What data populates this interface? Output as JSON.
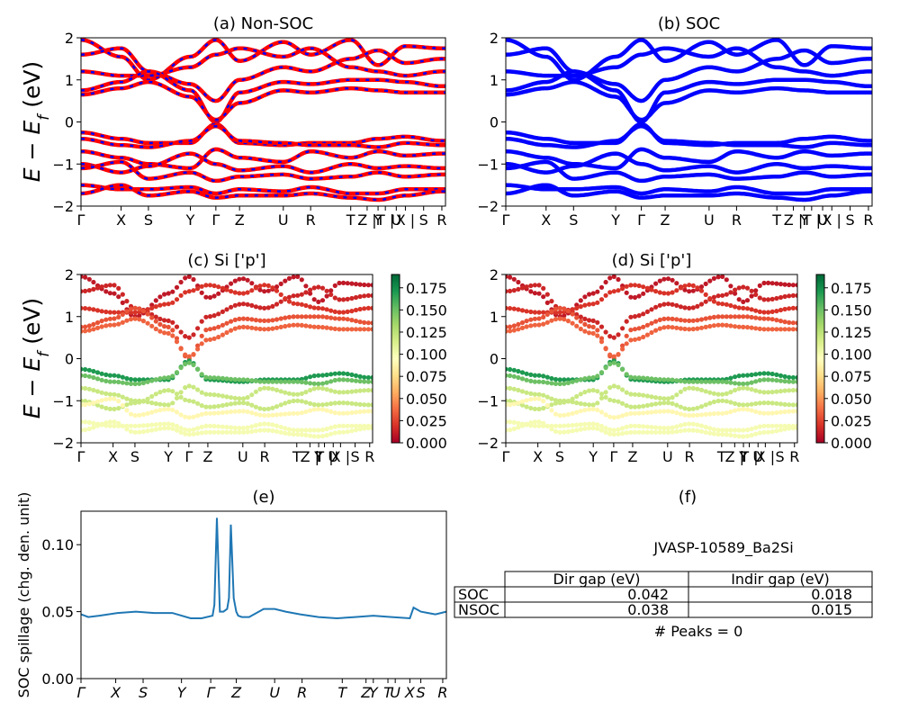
{
  "figure": {
    "ylabel_main": "E − E",
    "ylabel_sub": "f",
    "ylabel_unit": " (eV)"
  },
  "panels": {
    "a": {
      "title": "(a) Non-SOC",
      "yticks": [
        2,
        1,
        0,
        -1,
        -2
      ],
      "ytick_labels": [
        "2",
        "1",
        "0",
        "−1",
        "−2"
      ],
      "kpoint_labels": [
        "Γ",
        "X",
        "S",
        "Y",
        "Γ",
        "Z",
        "U",
        "R",
        "T",
        "Z |",
        "Y",
        "T |",
        "U",
        "X |",
        "S",
        "R"
      ]
    },
    "b": {
      "title": "(b) SOC",
      "yticks": [
        2,
        1,
        0,
        -1,
        -2
      ],
      "ytick_labels": [
        "2",
        "1",
        "0",
        "−1",
        "−2"
      ],
      "kpoint_labels": [
        "Γ",
        "X",
        "S",
        "Y",
        "Γ",
        "Z",
        "U",
        "R",
        "T",
        "Z |",
        "Y",
        "T |",
        "U",
        "X |",
        "S",
        "R"
      ]
    },
    "c": {
      "title": "(c)  Si ['p']",
      "ytick_labels": [
        "2",
        "1",
        "0",
        "−1",
        "−2"
      ],
      "kpoint_labels": [
        "Γ",
        "X",
        "S",
        "Y",
        "Γ",
        "Z",
        "U",
        "R",
        "T",
        "Z |",
        "Y",
        "T |",
        "U",
        "X |",
        "S",
        "R"
      ],
      "colorbar_ticks": [
        "0.175",
        "0.150",
        "0.125",
        "0.100",
        "0.075",
        "0.050",
        "0.025",
        "0.000"
      ]
    },
    "d": {
      "title": "(d) Si ['p']",
      "ytick_labels": [
        "2",
        "1",
        "0",
        "−1",
        "−2"
      ],
      "kpoint_labels": [
        "Γ",
        "X",
        "S",
        "Y",
        "Γ",
        "Z",
        "U",
        "R",
        "T",
        "Z |",
        "Y",
        "T |",
        "U",
        "X |",
        "S",
        "R"
      ],
      "colorbar_ticks": [
        "0.175",
        "0.150",
        "0.125",
        "0.100",
        "0.075",
        "0.050",
        "0.025",
        "0.000"
      ]
    },
    "e": {
      "title": "(e)",
      "ylabel": "SOC spillage (chg. den. unit)",
      "ytick_labels": [
        "0.10",
        "0.05",
        "0.00"
      ],
      "kpoint_labels": [
        "Γ",
        "X",
        "S",
        "Y",
        "Γ",
        "Z",
        "U",
        "R",
        "T",
        "Z",
        "Y",
        "T",
        "U",
        "X",
        "S",
        "R"
      ]
    },
    "f": {
      "title": "(f)",
      "material": "JVASP-10589_Ba2Si",
      "table": {
        "headers": [
          "",
          "Dir gap (eV)",
          "Indir gap (eV)"
        ],
        "rows": [
          [
            "SOC",
            "0.042",
            "0.018"
          ],
          [
            "NSOC",
            "0.038",
            "0.015"
          ]
        ]
      },
      "peaks_text": "# Peaks = 0"
    }
  },
  "colors": {
    "nonsoc_band": "#ff0000",
    "nonsoc_dash": "#0000ff",
    "soc_band": "#0000ff",
    "spillage_line": "#1f77b4",
    "colormap": "RdYlGn"
  },
  "chart_data": [
    {
      "type": "line",
      "panel": "a",
      "title": "(a) Non-SOC",
      "ylabel": "E − E_f (eV)",
      "ylim": [
        -2,
        2
      ],
      "x_ticks": [
        "Γ",
        "X",
        "S",
        "Y",
        "Γ",
        "Z",
        "U",
        "R",
        "T",
        "Z |",
        "Y",
        "T |",
        "U",
        "X |",
        "S",
        "R"
      ],
      "x_tick_positions": [
        0,
        0.11,
        0.185,
        0.3,
        0.37,
        0.435,
        0.555,
        0.63,
        0.74,
        0.785,
        0.815,
        0.835,
        0.865,
        0.89,
        0.94,
        0.99
      ],
      "grid": false,
      "bands": [
        {
          "x": [
            0,
            0.11,
            0.185,
            0.3,
            0.37,
            0.435,
            0.555,
            0.63,
            0.74,
            0.815,
            0.89,
            0.99
          ],
          "y": [
            1.95,
            1.55,
            1.0,
            1.55,
            1.95,
            1.45,
            1.9,
            1.6,
            1.95,
            1.35,
            1.8,
            1.75
          ]
        },
        {
          "x": [
            0,
            0.11,
            0.185,
            0.3,
            0.37,
            0.435,
            0.555,
            0.63,
            0.74,
            0.815,
            0.89,
            0.99
          ],
          "y": [
            1.6,
            1.75,
            1.2,
            0.9,
            0.5,
            1.0,
            1.3,
            1.2,
            1.5,
            1.7,
            1.4,
            1.5
          ]
        },
        {
          "x": [
            0,
            0.11,
            0.185,
            0.3,
            0.37,
            0.435,
            0.555,
            0.63,
            0.74,
            0.815,
            0.89,
            0.99
          ],
          "y": [
            1.2,
            1.1,
            1.1,
            1.3,
            1.6,
            1.75,
            1.55,
            1.75,
            1.3,
            1.2,
            1.1,
            1.2
          ]
        },
        {
          "x": [
            0,
            0.11,
            0.185,
            0.3,
            0.37,
            0.435,
            0.555,
            0.63,
            0.74,
            0.815,
            0.89,
            0.99
          ],
          "y": [
            0.75,
            0.95,
            1.2,
            0.75,
            0.0,
            0.7,
            0.95,
            0.9,
            1.0,
            1.0,
            0.95,
            0.85
          ]
        },
        {
          "x": [
            0,
            0.11,
            0.185,
            0.3,
            0.37,
            0.435,
            0.555,
            0.63,
            0.74,
            0.815,
            0.89,
            0.99
          ],
          "y": [
            0.65,
            0.8,
            0.95,
            0.6,
            0.05,
            0.45,
            0.75,
            0.7,
            0.8,
            0.75,
            0.7,
            0.7
          ]
        },
        {
          "x": [
            0,
            0.11,
            0.185,
            0.3,
            0.37,
            0.435,
            0.555,
            0.63,
            0.74,
            0.815,
            0.89,
            0.99
          ],
          "y": [
            -0.25,
            -0.4,
            -0.5,
            -0.5,
            -0.05,
            -0.5,
            -0.55,
            -0.5,
            -0.5,
            -0.4,
            -0.35,
            -0.45
          ]
        },
        {
          "x": [
            0,
            0.11,
            0.185,
            0.3,
            0.37,
            0.435,
            0.555,
            0.63,
            0.74,
            0.815,
            0.89,
            0.99
          ],
          "y": [
            -0.4,
            -0.55,
            -0.6,
            -0.45,
            -0.1,
            -0.45,
            -0.5,
            -0.55,
            -0.55,
            -0.6,
            -0.5,
            -0.55
          ]
        },
        {
          "x": [
            0,
            0.11,
            0.185,
            0.3,
            0.37,
            0.435,
            0.555,
            0.63,
            0.74,
            0.815,
            0.89,
            0.99
          ],
          "y": [
            -0.7,
            -0.85,
            -1.0,
            -1.1,
            -0.65,
            -0.85,
            -0.95,
            -0.7,
            -0.85,
            -0.7,
            -0.8,
            -0.75
          ]
        },
        {
          "x": [
            0,
            0.11,
            0.185,
            0.3,
            0.37,
            0.435,
            0.555,
            0.63,
            0.74,
            0.815,
            0.89,
            0.99
          ],
          "y": [
            -1.0,
            -1.2,
            -1.05,
            -0.75,
            -1.0,
            -1.15,
            -1.05,
            -1.2,
            -1.0,
            -1.1,
            -1.05,
            -1.1
          ]
        },
        {
          "x": [
            0,
            0.11,
            0.185,
            0.3,
            0.37,
            0.435,
            0.555,
            0.63,
            0.74,
            0.815,
            0.89,
            0.99
          ],
          "y": [
            -1.1,
            -0.95,
            -1.35,
            -1.2,
            -1.4,
            -1.3,
            -1.25,
            -1.35,
            -1.3,
            -1.2,
            -1.3,
            -1.25
          ]
        },
        {
          "x": [
            0,
            0.11,
            0.185,
            0.3,
            0.37,
            0.435,
            0.555,
            0.63,
            0.74,
            0.815,
            0.89,
            0.99
          ],
          "y": [
            -1.5,
            -1.6,
            -1.6,
            -1.55,
            -1.7,
            -1.6,
            -1.65,
            -1.55,
            -1.7,
            -1.7,
            -1.6,
            -1.6
          ]
        },
        {
          "x": [
            0,
            0.11,
            0.185,
            0.3,
            0.37,
            0.435,
            0.555,
            0.63,
            0.74,
            0.815,
            0.89,
            0.99
          ],
          "y": [
            -1.7,
            -1.5,
            -1.75,
            -1.65,
            -1.8,
            -1.75,
            -1.75,
            -1.7,
            -1.8,
            -1.85,
            -1.75,
            -1.65
          ]
        }
      ]
    },
    {
      "type": "line",
      "panel": "b",
      "title": "(b) SOC",
      "ylim": [
        -2,
        2
      ],
      "x_ticks": [
        "Γ",
        "X",
        "S",
        "Y",
        "Γ",
        "Z",
        "U",
        "R",
        "T",
        "Z |",
        "Y",
        "T |",
        "U",
        "X |",
        "S",
        "R"
      ],
      "grid": false,
      "bands_same_as": "a"
    },
    {
      "type": "scatter",
      "panel": "c",
      "title": "(c)  Si ['p']",
      "ylim": [
        -2,
        2
      ],
      "colorbar": {
        "min": 0.0,
        "max": 0.19,
        "ticks": [
          0.0,
          0.025,
          0.05,
          0.075,
          0.1,
          0.125,
          0.15,
          0.175
        ],
        "cmap": "RdYlGn"
      },
      "band_weights": [
        0.01,
        0.015,
        0.02,
        0.03,
        0.035,
        0.17,
        0.15,
        0.12,
        0.12,
        0.09,
        0.1,
        0.1
      ]
    },
    {
      "type": "scatter",
      "panel": "d",
      "title": "(d) Si ['p']",
      "ylim": [
        -2,
        2
      ],
      "colorbar": {
        "min": 0.0,
        "max": 0.19,
        "ticks": [
          0.0,
          0.025,
          0.05,
          0.075,
          0.1,
          0.125,
          0.15,
          0.175
        ],
        "cmap": "RdYlGn"
      },
      "band_weights": [
        0.01,
        0.015,
        0.02,
        0.03,
        0.035,
        0.17,
        0.15,
        0.12,
        0.12,
        0.09,
        0.1,
        0.1
      ]
    },
    {
      "type": "line",
      "panel": "e",
      "title": "(e)",
      "ylabel": "SOC spillage (chg. den. unit)",
      "ylim": [
        0,
        0.125
      ],
      "yticks": [
        0.0,
        0.05,
        0.1
      ],
      "x": [
        0,
        0.02,
        0.05,
        0.1,
        0.15,
        0.2,
        0.25,
        0.3,
        0.33,
        0.36,
        0.365,
        0.372,
        0.38,
        0.385,
        0.39,
        0.4,
        0.405,
        0.41,
        0.418,
        0.425,
        0.43,
        0.44,
        0.46,
        0.5,
        0.53,
        0.56,
        0.6,
        0.65,
        0.7,
        0.75,
        0.8,
        0.85,
        0.9,
        0.91,
        0.93,
        0.95,
        0.97,
        1.0
      ],
      "y": [
        0.048,
        0.046,
        0.047,
        0.049,
        0.05,
        0.049,
        0.049,
        0.045,
        0.045,
        0.047,
        0.055,
        0.12,
        0.05,
        0.05,
        0.05,
        0.052,
        0.06,
        0.115,
        0.06,
        0.05,
        0.047,
        0.046,
        0.046,
        0.052,
        0.052,
        0.05,
        0.048,
        0.046,
        0.045,
        0.046,
        0.047,
        0.046,
        0.045,
        0.053,
        0.05,
        0.049,
        0.048,
        0.05
      ]
    }
  ]
}
